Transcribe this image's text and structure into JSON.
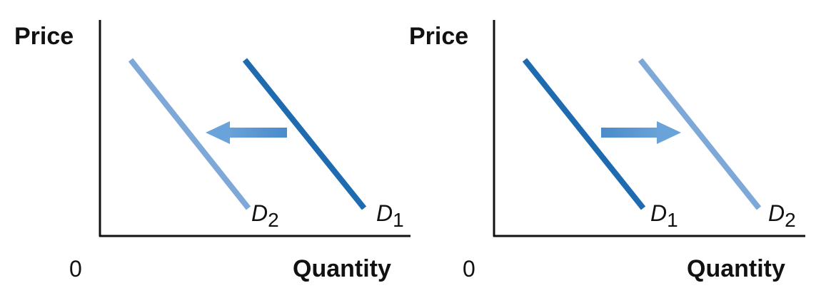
{
  "colors": {
    "dark_blue": "#1f6bb0",
    "light_blue": "#7ea8d8",
    "arrow_blue": "#4a8bcb",
    "axis": "#111111"
  },
  "panels": [
    {
      "name": "left",
      "y_axis_label": "Price",
      "x_axis_label": "Quantity",
      "origin_label": "0",
      "curves": [
        {
          "letter": "D",
          "sub": "1",
          "color": "dark_blue"
        },
        {
          "letter": "D",
          "sub": "2",
          "color": "light_blue"
        }
      ],
      "shift_direction": "left"
    },
    {
      "name": "right",
      "y_axis_label": "Price",
      "x_axis_label": "Quantity",
      "origin_label": "0",
      "curves": [
        {
          "letter": "D",
          "sub": "1",
          "color": "dark_blue"
        },
        {
          "letter": "D",
          "sub": "2",
          "color": "light_blue"
        }
      ],
      "shift_direction": "right"
    }
  ]
}
